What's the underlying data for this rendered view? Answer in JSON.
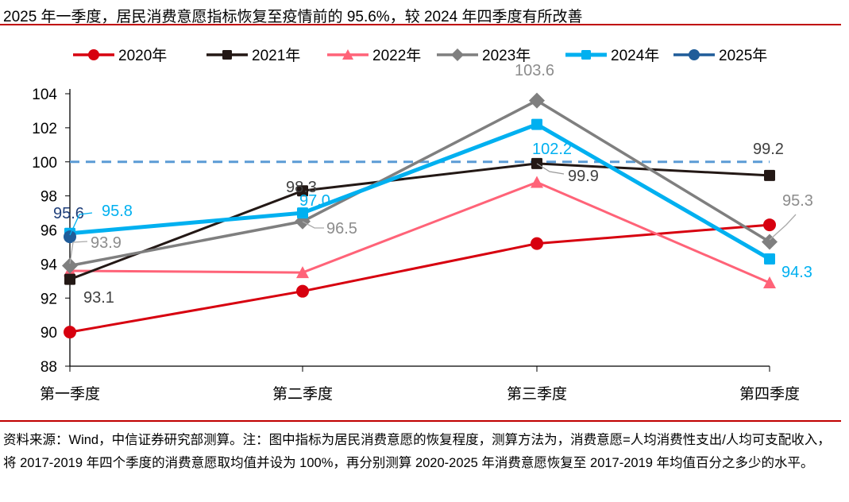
{
  "title": "2025 年一季度，居民消费意愿指标恢复至疫情前的 95.6%，较 2024 年四季度有所改善",
  "source_note": "资料来源：Wind，中信证券研究部测算。注：图中指标为居民消费意愿的恢复程度，测算方法为，消费意愿=人均消费性支出/人均可支配收入，将 2017-2019 年四个季度的消费意愿取均值并设为 100%，再分别测算 2020-2025 年消费意愿恢复至 2017-2019 年均值百分之多少的水平。",
  "chart_data": {
    "type": "line",
    "title": "2025 年一季度，居民消费意愿指标恢复至疫情前的 95.6%，较 2024 年四季度有所改善",
    "categories": [
      "第一季度",
      "第二季度",
      "第三季度",
      "第四季度"
    ],
    "ylim": [
      88,
      104
    ],
    "yticks": [
      88,
      90,
      92,
      94,
      96,
      98,
      100,
      102,
      104
    ],
    "reference_line": {
      "value": 100,
      "style": "dashed",
      "color": "#5b9bd5"
    },
    "grid": false,
    "legend_placement": "top",
    "series": [
      {
        "name": "2020年",
        "values": [
          90.0,
          92.4,
          95.2,
          96.3
        ],
        "color": "#d7000f",
        "marker": "circle",
        "labels": [
          null,
          null,
          null,
          null
        ]
      },
      {
        "name": "2021年",
        "values": [
          93.1,
          98.3,
          99.9,
          99.2
        ],
        "color": "#231815",
        "marker": "square",
        "labels": [
          "93.1",
          "98.3",
          "99.9",
          "99.2"
        ],
        "label_color": "#404040"
      },
      {
        "name": "2022年",
        "values": [
          93.6,
          93.5,
          98.8,
          92.9
        ],
        "color": "#ff6378",
        "marker": "triangle",
        "labels": [
          null,
          null,
          null,
          null
        ]
      },
      {
        "name": "2023年",
        "values": [
          93.9,
          96.5,
          103.6,
          95.3
        ],
        "color": "#7f7f7f",
        "marker": "diamond",
        "labels": [
          "93.9",
          "96.5",
          "103.6",
          "95.3"
        ],
        "label_color": "#8c8c8c"
      },
      {
        "name": "2024年",
        "values": [
          95.8,
          97.0,
          102.2,
          94.3
        ],
        "color": "#00b0f0",
        "marker": "square",
        "labels": [
          "95.8",
          "97.0",
          "102.2",
          "94.3"
        ],
        "label_color": "#00b0f0"
      },
      {
        "name": "2025年",
        "values": [
          95.6,
          null,
          null,
          null
        ],
        "color": "#1f5c99",
        "marker": "circle",
        "labels": [
          "95.6",
          null,
          null,
          null
        ],
        "label_color": "#1f3f7a"
      }
    ]
  }
}
